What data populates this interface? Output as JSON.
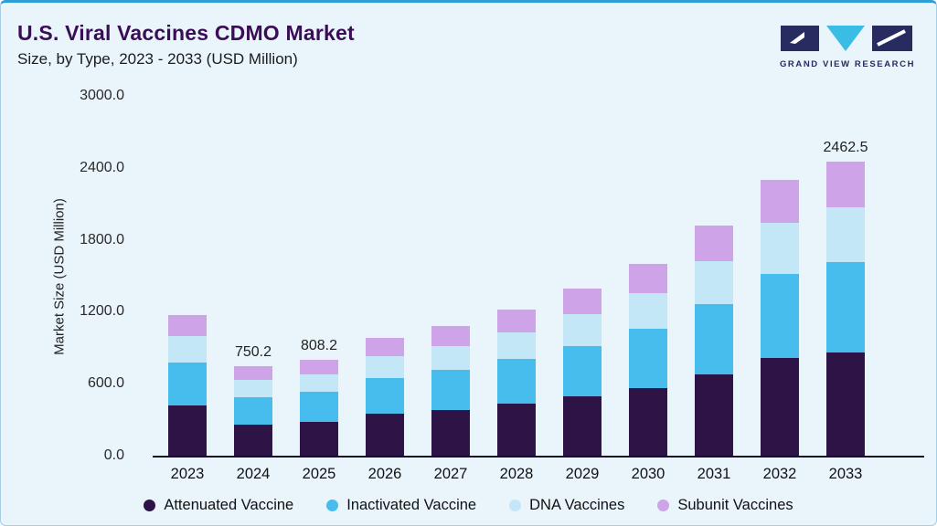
{
  "header": {
    "title": "U.S. Viral Vaccines CDMO Market",
    "subtitle": "Size, by Type, 2023 - 2033 (USD Million)",
    "brand": "GRAND VIEW RESEARCH"
  },
  "colors": {
    "background": "#e9f4fb",
    "top_border": "#2e9ed6",
    "title": "#3a0e56",
    "axis_line": "#10102a",
    "attenuated": "#2e1347",
    "inactivated": "#46bdec",
    "dna": "#c4e7f8",
    "subunit": "#cfa3e8"
  },
  "chart_data": {
    "type": "bar",
    "stacked": true,
    "title": "U.S. Viral Vaccines CDMO Market Size, by Type, 2023 - 2033 (USD Million)",
    "xlabel": "",
    "ylabel": "Market Size (USD Million)",
    "ylim": [
      0,
      3000
    ],
    "yticks": [
      0,
      600,
      1200,
      1800,
      2400,
      3000
    ],
    "ytick_labels": [
      "0.0",
      "600.0",
      "1200.0",
      "1800.0",
      "2400.0",
      "3000.0"
    ],
    "grid": false,
    "legend_position": "bottom",
    "categories": [
      "2023",
      "2024",
      "2025",
      "2026",
      "2027",
      "2028",
      "2029",
      "2030",
      "2031",
      "2032",
      "2033"
    ],
    "series": [
      {
        "name": "Attenuated Vaccine",
        "color": "#2e1347",
        "values": [
          425,
          270.0,
          292.0,
          356,
          392,
          440,
          500,
          573,
          686,
          820,
          870.0
        ]
      },
      {
        "name": "Inactivated Vaccine",
        "color": "#46bdec",
        "values": [
          360,
          228.0,
          245.0,
          300,
          330,
          371,
          425,
          490,
          586,
          703,
          750.0
        ]
      },
      {
        "name": "DNA Vaccines",
        "color": "#c4e7f8",
        "values": [
          220,
          140.0,
          150.0,
          184,
          202,
          227,
          260,
          299,
          358,
          429,
          457.5
        ]
      },
      {
        "name": "Subunit Vaccines",
        "color": "#cfa3e8",
        "values": [
          175,
          112.2,
          121.2,
          150,
          166,
          187,
          215,
          248,
          300,
          358,
          385.0
        ]
      }
    ],
    "totals": [
      1180,
      750.2,
      808.2,
      990,
      1090,
      1225,
      1400,
      1610,
      1930,
      2310,
      2462.5
    ],
    "bar_total_labels": {
      "2024": "750.2",
      "2025": "808.2",
      "2033": "2462.5"
    }
  }
}
